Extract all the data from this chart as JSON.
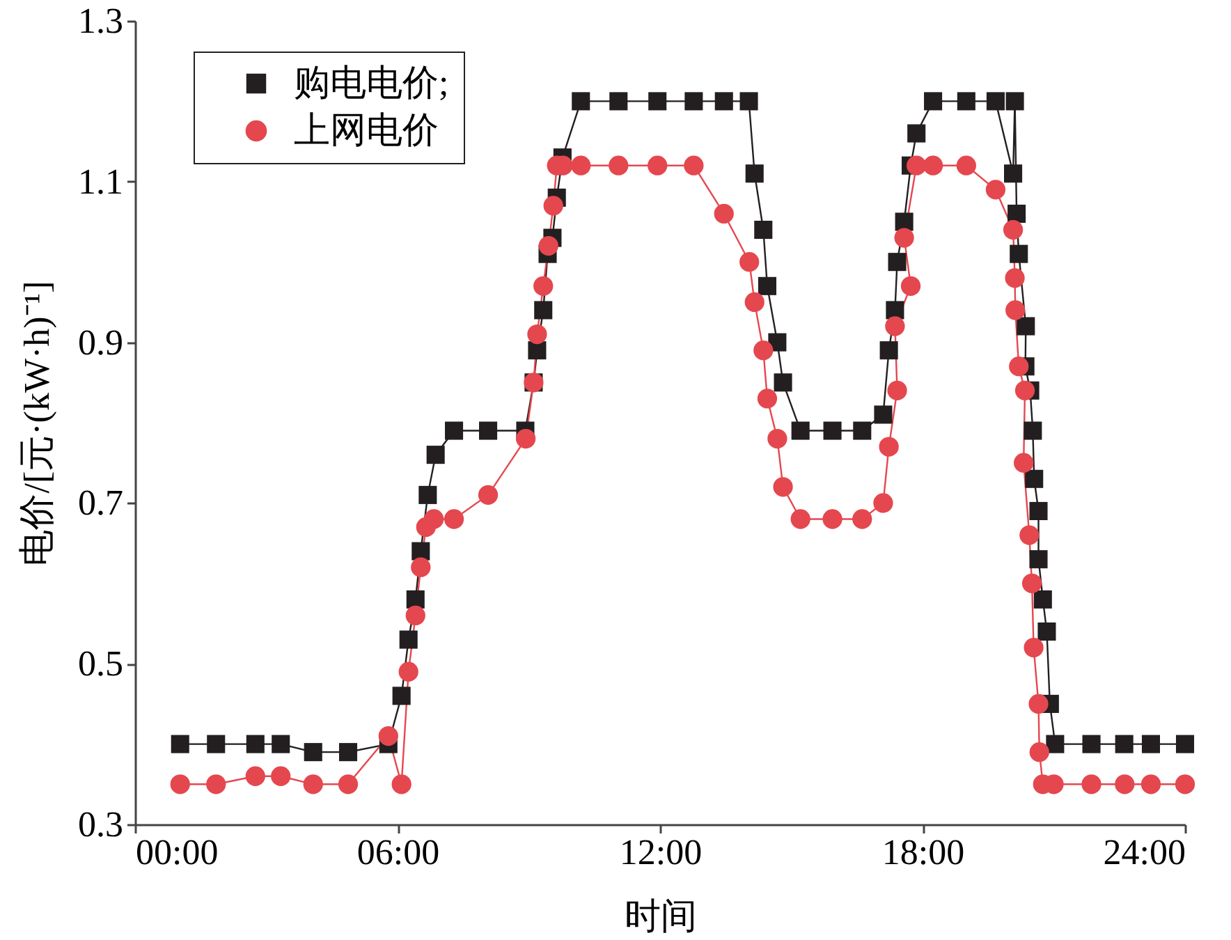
{
  "chart_data": {
    "type": "line",
    "xlabel": "时间",
    "ylabel": "电价/[元·(kW·h)⁻¹]",
    "xlim": [
      0,
      24
    ],
    "xticks": [
      {
        "value": 0,
        "label": "00:00"
      },
      {
        "value": 6,
        "label": "06:00"
      },
      {
        "value": 12,
        "label": "12:00"
      },
      {
        "value": 18,
        "label": "18:00"
      },
      {
        "value": 24,
        "label": "24:00"
      }
    ],
    "ylim": [
      0.3,
      1.3
    ],
    "yticks": [
      0.3,
      0.5,
      0.7,
      0.9,
      1.1,
      1.3
    ],
    "grid": false,
    "legend": "top left",
    "line_style": "solid",
    "series": [
      {
        "name": "购电电价;",
        "color": "#231f20",
        "marker": "square",
        "x": [
          1.03,
          1.85,
          2.75,
          3.33,
          4.07,
          4.87,
          5.79,
          6.09,
          6.25,
          6.41,
          6.53,
          6.69,
          6.87,
          7.29,
          8.07,
          8.92,
          9.11,
          9.19,
          9.33,
          9.43,
          9.54,
          9.64,
          9.77,
          10.19,
          11.05,
          11.94,
          12.77,
          13.46,
          14.03,
          14.16,
          14.36,
          14.45,
          14.68,
          14.81,
          15.21,
          15.94,
          16.62,
          17.1,
          17.23,
          17.37,
          17.42,
          17.58,
          17.73,
          17.86,
          18.24,
          19.0,
          19.67,
          20.07,
          20.11,
          20.15,
          20.2,
          20.36,
          20.35,
          20.46,
          20.52,
          20.55,
          20.65,
          20.65,
          20.75,
          20.84,
          20.91,
          21.03,
          21.86,
          22.61,
          23.22,
          24.0
        ],
        "values": [
          0.4,
          0.4,
          0.4,
          0.4,
          0.39,
          0.39,
          0.4,
          0.46,
          0.53,
          0.58,
          0.64,
          0.71,
          0.76,
          0.79,
          0.79,
          0.79,
          0.85,
          0.89,
          0.94,
          1.01,
          1.03,
          1.08,
          1.13,
          1.2,
          1.2,
          1.2,
          1.2,
          1.2,
          1.2,
          1.11,
          1.04,
          0.97,
          0.9,
          0.85,
          0.79,
          0.79,
          0.79,
          0.81,
          0.89,
          0.94,
          1.0,
          1.05,
          1.12,
          1.16,
          1.2,
          1.2,
          1.2,
          1.11,
          1.2,
          1.06,
          1.01,
          0.92,
          0.87,
          0.84,
          0.79,
          0.73,
          0.69,
          0.63,
          0.58,
          0.54,
          0.45,
          0.4,
          0.4,
          0.4,
          0.4,
          0.4
        ]
      },
      {
        "name": "上网电价",
        "color": "#e5474f",
        "marker": "circle",
        "x": [
          1.03,
          1.85,
          2.75,
          3.33,
          4.07,
          4.87,
          5.79,
          6.09,
          6.25,
          6.41,
          6.53,
          6.65,
          6.83,
          7.29,
          8.07,
          8.93,
          9.11,
          9.19,
          9.33,
          9.45,
          9.56,
          9.64,
          9.78,
          10.19,
          11.05,
          11.94,
          12.77,
          13.46,
          14.04,
          14.16,
          14.36,
          14.45,
          14.68,
          14.81,
          15.21,
          15.94,
          16.62,
          17.1,
          17.23,
          17.42,
          17.37,
          17.73,
          17.58,
          17.86,
          18.24,
          19.0,
          19.67,
          20.07,
          20.11,
          20.12,
          20.2,
          20.34,
          20.31,
          20.44,
          20.5,
          20.54,
          20.65,
          20.67,
          20.75,
          21.0,
          21.86,
          22.62,
          23.22,
          24.0
        ],
        "values": [
          0.35,
          0.35,
          0.36,
          0.36,
          0.35,
          0.35,
          0.41,
          0.35,
          0.49,
          0.56,
          0.62,
          0.67,
          0.68,
          0.68,
          0.71,
          0.78,
          0.85,
          0.91,
          0.97,
          1.02,
          1.07,
          1.12,
          1.12,
          1.12,
          1.12,
          1.12,
          1.12,
          1.06,
          1.0,
          0.95,
          0.89,
          0.83,
          0.78,
          0.72,
          0.68,
          0.68,
          0.68,
          0.7,
          0.77,
          0.84,
          0.92,
          0.97,
          1.03,
          1.12,
          1.12,
          1.12,
          1.09,
          1.04,
          0.98,
          0.94,
          0.87,
          0.84,
          0.75,
          0.66,
          0.6,
          0.52,
          0.45,
          0.39,
          0.35,
          0.35,
          0.35,
          0.35,
          0.35,
          0.35
        ]
      }
    ]
  }
}
